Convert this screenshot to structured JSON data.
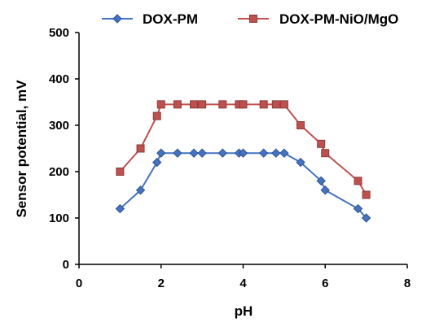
{
  "chart_data": {
    "type": "line",
    "title": "",
    "xlabel": "pH",
    "ylabel": "Sensor potential, mV",
    "xlim": [
      0,
      8
    ],
    "ylim": [
      0,
      500
    ],
    "xticks": [
      0,
      2,
      4,
      6,
      8
    ],
    "yticks": [
      0,
      100,
      200,
      300,
      400,
      500
    ],
    "grid": false,
    "legend_position": "top",
    "series": [
      {
        "name": "DOX-PM",
        "color": "#4472C4",
        "marker": "diamond",
        "x": [
          1.0,
          1.5,
          1.9,
          2.0,
          2.4,
          2.8,
          3.0,
          3.5,
          3.9,
          4.0,
          4.5,
          4.8,
          5.0,
          5.4,
          5.9,
          6.0,
          6.8,
          7.0
        ],
        "y": [
          120,
          160,
          220,
          240,
          240,
          240,
          240,
          240,
          240,
          240,
          240,
          240,
          240,
          220,
          180,
          160,
          120,
          100
        ]
      },
      {
        "name": "DOX-PM-NiO/MgO",
        "color": "#C0504D",
        "marker": "square",
        "x": [
          1.0,
          1.5,
          1.9,
          2.0,
          2.4,
          2.8,
          3.0,
          3.5,
          3.9,
          4.0,
          4.5,
          4.8,
          5.0,
          5.4,
          5.9,
          6.0,
          6.8,
          7.0
        ],
        "y": [
          200,
          250,
          320,
          345,
          345,
          345,
          345,
          345,
          345,
          345,
          345,
          345,
          345,
          300,
          260,
          240,
          180,
          150
        ]
      }
    ]
  }
}
